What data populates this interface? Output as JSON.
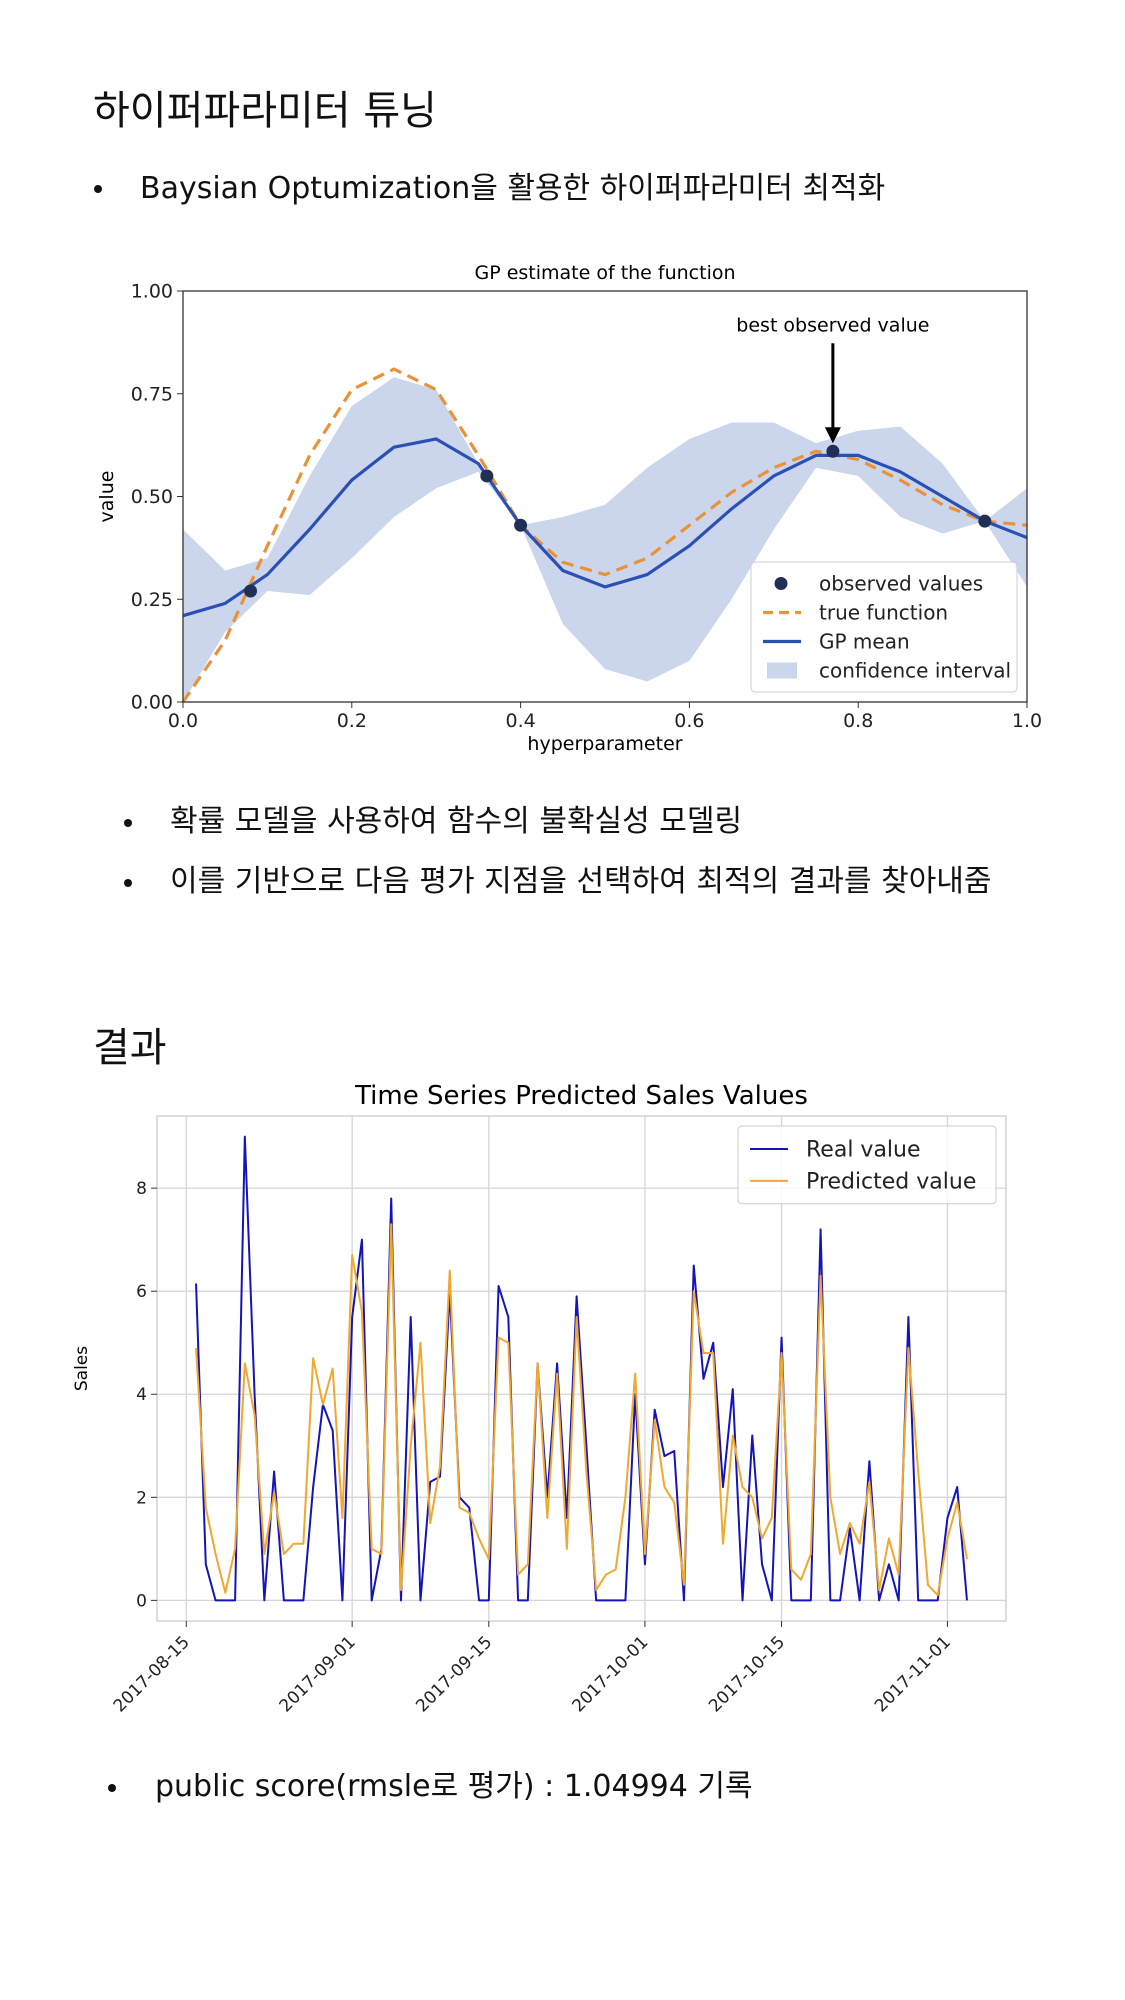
{
  "heading1": "하이퍼파라미터 튜닝",
  "bullet1": "Baysian Optumization을 활용한 하이퍼파라미터 최적화",
  "bullets2": [
    "확률 모델을 사용하여 함수의 불확실성 모델링",
    "이를 기반으로 다음 평가 지점을 선택하여 최적의 결과를 찾아내줌"
  ],
  "heading2": "결과",
  "bullet3": "public score(rmsle로 평가) : 1.04994 기록",
  "chart_data": [
    {
      "type": "line",
      "title": "GP estimate of the function",
      "x_label": "hyperparameter",
      "y_label": "value",
      "x": [
        0,
        0.05,
        0.1,
        0.15,
        0.2,
        0.25,
        0.3,
        0.35,
        0.4,
        0.45,
        0.5,
        0.55,
        0.6,
        0.65,
        0.7,
        0.75,
        0.8,
        0.85,
        0.9,
        0.95,
        1.0
      ],
      "xlim": [
        0,
        1
      ],
      "ylim": [
        0,
        1
      ],
      "xticks": [
        {
          "value": 0,
          "label": "0.0"
        },
        0.2,
        0.4,
        0.6,
        0.8,
        {
          "value": 1,
          "label": "1.0"
        }
      ],
      "yticks": [
        {
          "value": 0,
          "label": "0.00"
        },
        0.25,
        {
          "value": 0.5,
          "label": "0.50"
        },
        0.75,
        {
          "value": 1,
          "label": "1.00"
        }
      ],
      "band": {
        "name": "confidence interval",
        "color": "#cbd6ec",
        "upper": [
          0.42,
          0.32,
          0.35,
          0.55,
          0.72,
          0.79,
          0.76,
          0.58,
          0.43,
          0.45,
          0.48,
          0.57,
          0.64,
          0.68,
          0.68,
          0.63,
          0.66,
          0.67,
          0.58,
          0.44,
          0.52
        ],
        "lower": [
          0.0,
          0.17,
          0.27,
          0.26,
          0.35,
          0.45,
          0.52,
          0.56,
          0.43,
          0.19,
          0.08,
          0.05,
          0.1,
          0.25,
          0.42,
          0.57,
          0.55,
          0.45,
          0.41,
          0.44,
          0.28
        ]
      },
      "series": [
        {
          "name": "true function",
          "color": "#e8923a",
          "dashed": true,
          "values": [
            0.0,
            0.15,
            0.38,
            0.6,
            0.76,
            0.81,
            0.76,
            0.6,
            0.43,
            0.34,
            0.31,
            0.35,
            0.43,
            0.51,
            0.57,
            0.61,
            0.59,
            0.54,
            0.48,
            0.44,
            0.43
          ]
        },
        {
          "name": "GP mean",
          "color": "#2a4fb5",
          "dashed": false,
          "values": [
            0.21,
            0.24,
            0.31,
            0.42,
            0.54,
            0.62,
            0.64,
            0.58,
            0.43,
            0.32,
            0.28,
            0.31,
            0.38,
            0.47,
            0.55,
            0.6,
            0.6,
            0.56,
            0.5,
            0.44,
            0.4
          ]
        }
      ],
      "points": {
        "name": "observed values",
        "color": "#1f2f55",
        "x": [
          0.08,
          0.36,
          0.4,
          0.77,
          0.95
        ],
        "values": [
          0.27,
          0.55,
          0.43,
          0.61,
          0.44
        ]
      },
      "annotation": {
        "text": "best observed value",
        "x": 0.77,
        "y": 0.61
      },
      "legend": "lower right",
      "grid": false
    },
    {
      "type": "line",
      "title": "Time Series Predicted Sales Values",
      "y_label": "Sales",
      "x": [
        "2017-08-16",
        "2017-08-17",
        "2017-08-18",
        "2017-08-19",
        "2017-08-20",
        "2017-08-21",
        "2017-08-22",
        "2017-08-23",
        "2017-08-24",
        "2017-08-25",
        "2017-08-26",
        "2017-08-27",
        "2017-08-28",
        "2017-08-29",
        "2017-08-30",
        "2017-08-31",
        "2017-09-01",
        "2017-09-02",
        "2017-09-03",
        "2017-09-04",
        "2017-09-05",
        "2017-09-06",
        "2017-09-07",
        "2017-09-08",
        "2017-09-09",
        "2017-09-10",
        "2017-09-11",
        "2017-09-12",
        "2017-09-13",
        "2017-09-14",
        "2017-09-15",
        "2017-09-16",
        "2017-09-17",
        "2017-09-18",
        "2017-09-19",
        "2017-09-20",
        "2017-09-21",
        "2017-09-22",
        "2017-09-23",
        "2017-09-24",
        "2017-09-25",
        "2017-09-26",
        "2017-09-27",
        "2017-09-28",
        "2017-09-29",
        "2017-09-30",
        "2017-10-01",
        "2017-10-02",
        "2017-10-03",
        "2017-10-04",
        "2017-10-05",
        "2017-10-06",
        "2017-10-07",
        "2017-10-08",
        "2017-10-09",
        "2017-10-10",
        "2017-10-11",
        "2017-10-12",
        "2017-10-13",
        "2017-10-14",
        "2017-10-15",
        "2017-10-16",
        "2017-10-17",
        "2017-10-18",
        "2017-10-19",
        "2017-10-20",
        "2017-10-21",
        "2017-10-22",
        "2017-10-23",
        "2017-10-24",
        "2017-10-25",
        "2017-10-26",
        "2017-10-27",
        "2017-10-28",
        "2017-10-29",
        "2017-10-30",
        "2017-10-31",
        "2017-11-01",
        "2017-11-02",
        "2017-11-03"
      ],
      "xlim": [
        "2017-08-12",
        "2017-11-07"
      ],
      "ylim": [
        -0.4,
        9.4
      ],
      "xticks": [
        "2017-08-15",
        "2017-09-01",
        "2017-09-15",
        "2017-10-01",
        "2017-10-15",
        "2017-11-01"
      ],
      "yticks": [
        0,
        2,
        4,
        6,
        8
      ],
      "series": [
        {
          "name": "Real value",
          "color": "#1414b8",
          "values": [
            6.15,
            0.7,
            0,
            0,
            0,
            9.0,
            4.0,
            0,
            2.5,
            0,
            0,
            0,
            2.2,
            3.8,
            3.3,
            0,
            5.5,
            7.0,
            0,
            1.0,
            7.8,
            0,
            5.5,
            0,
            2.3,
            2.4,
            6.0,
            2.0,
            1.8,
            0,
            0,
            6.1,
            5.5,
            0,
            0,
            4.6,
            2.0,
            4.6,
            1.6,
            5.9,
            3.0,
            0,
            0,
            0,
            0,
            4.0,
            0.7,
            3.7,
            2.8,
            2.9,
            0,
            6.5,
            4.3,
            5.0,
            2.2,
            4.1,
            0,
            3.2,
            0.7,
            0,
            5.1,
            0,
            0,
            0,
            7.2,
            0,
            0,
            1.4,
            0,
            2.7,
            0,
            0.7,
            0,
            5.5,
            0,
            0,
            0,
            1.6,
            2.2,
            0
          ]
        },
        {
          "name": "Predicted value",
          "color": "#f0a830",
          "values": [
            4.9,
            1.8,
            0.9,
            0.15,
            1.0,
            4.6,
            3.6,
            0.9,
            2.1,
            0.9,
            1.1,
            1.1,
            4.7,
            3.8,
            4.5,
            1.6,
            6.7,
            5.6,
            1.0,
            0.9,
            7.3,
            0.2,
            3.0,
            5.0,
            1.5,
            2.6,
            6.4,
            1.8,
            1.7,
            1.2,
            0.8,
            5.1,
            5.0,
            0.5,
            0.7,
            4.6,
            1.6,
            4.4,
            1.0,
            5.5,
            2.5,
            0.2,
            0.5,
            0.6,
            2.0,
            4.4,
            0.9,
            3.5,
            2.2,
            1.9,
            0.3,
            6.0,
            4.8,
            4.8,
            1.1,
            3.2,
            2.2,
            2.0,
            1.2,
            1.6,
            4.8,
            0.6,
            0.4,
            0.9,
            6.3,
            2.0,
            0.9,
            1.5,
            1.1,
            2.3,
            0.2,
            1.2,
            0.5,
            4.9,
            2.5,
            0.3,
            0.1,
            1.2,
            1.9,
            0.8
          ]
        }
      ],
      "legend": "upper right",
      "grid": true
    }
  ]
}
